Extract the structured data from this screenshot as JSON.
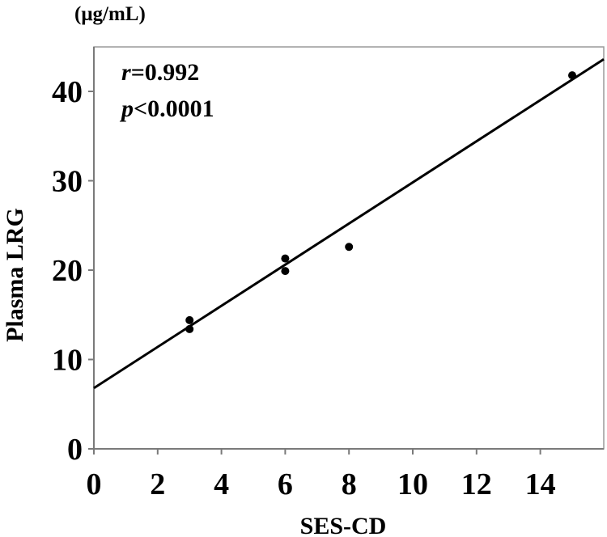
{
  "chart_data": {
    "type": "scatter",
    "unit_label": "(μg/mL)",
    "xlabel": "SES-CD",
    "ylabel": "Plasma LRG",
    "xlim": [
      0,
      16
    ],
    "ylim": [
      0,
      45
    ],
    "xticks": [
      0,
      2,
      4,
      6,
      8,
      10,
      12,
      14
    ],
    "yticks": [
      0,
      10,
      20,
      30,
      40
    ],
    "points": [
      {
        "x": 3,
        "y": 14.4
      },
      {
        "x": 3,
        "y": 13.4
      },
      {
        "x": 6,
        "y": 21.3
      },
      {
        "x": 6,
        "y": 19.9
      },
      {
        "x": 8,
        "y": 22.6
      },
      {
        "x": 15,
        "y": 41.8
      }
    ],
    "regression": {
      "intercept": 6.8,
      "slope": 2.3
    },
    "annotations": {
      "r_symbol": "r",
      "r_value": "=0.992",
      "p_symbol": "p",
      "p_value": "<0.0001"
    },
    "grid": false,
    "legend": "none"
  }
}
